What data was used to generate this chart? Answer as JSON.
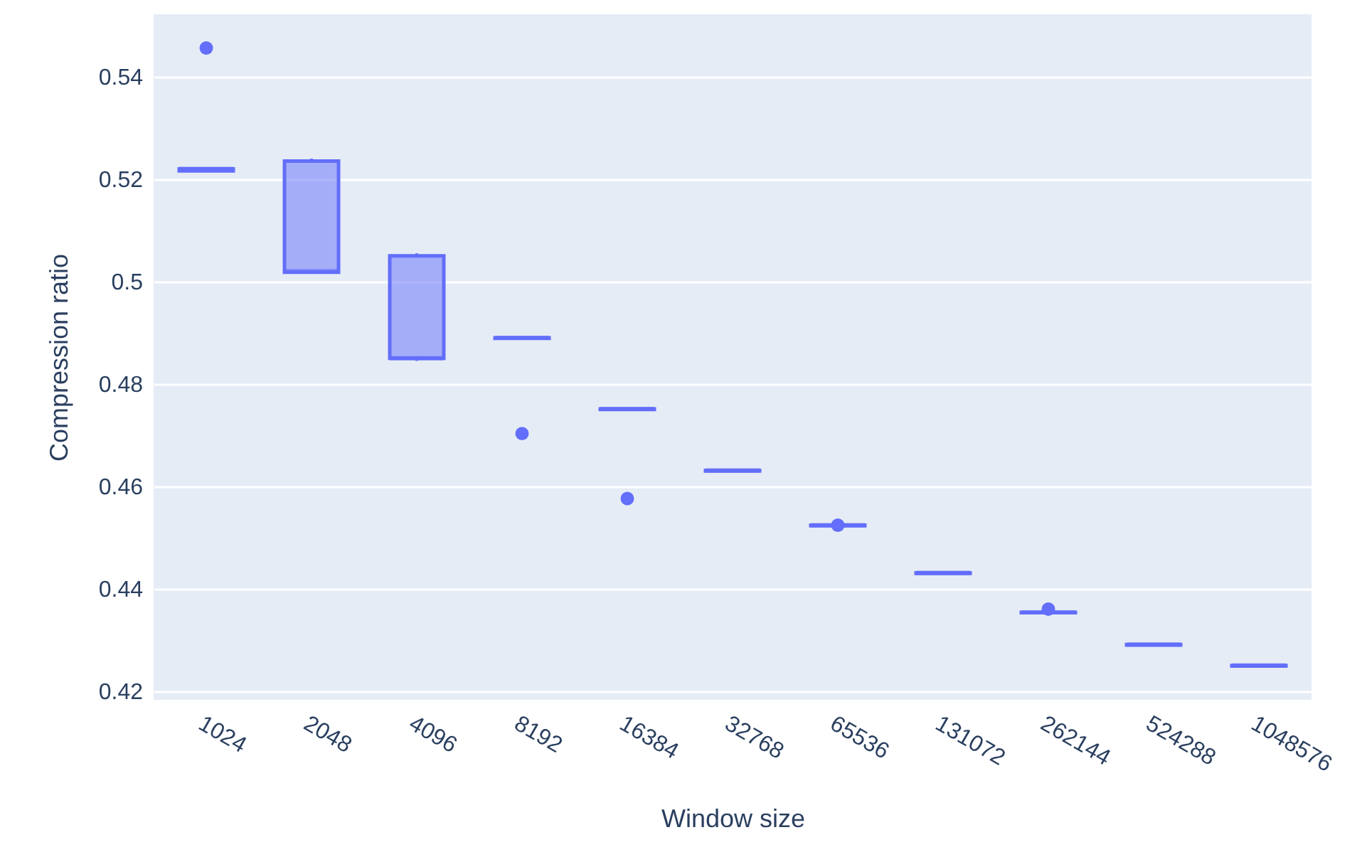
{
  "chart_data": {
    "type": "box",
    "xlabel": "Window size",
    "ylabel": "Compression ratio",
    "categories": [
      "1024",
      "2048",
      "4096",
      "8192",
      "16384",
      "32768",
      "65536",
      "131072",
      "262144",
      "524288",
      "1048576"
    ],
    "series": [
      {
        "color": "#636efa",
        "boxes": [
          {
            "low": 0.5215,
            "q1": 0.5216,
            "median": 0.522,
            "q3": 0.522,
            "high": 0.5222,
            "outliers": [
              0.5456
            ]
          },
          {
            "low": 0.5015,
            "q1": 0.5018,
            "median": 0.502,
            "q3": 0.5235,
            "high": 0.524
          },
          {
            "low": 0.4845,
            "q1": 0.485,
            "median": 0.485,
            "q3": 0.505,
            "high": 0.5055
          },
          {
            "low": 0.4888,
            "q1": 0.4889,
            "median": 0.489,
            "q3": 0.489,
            "high": 0.4892,
            "outliers": [
              0.4703
            ]
          },
          {
            "low": 0.4749,
            "q1": 0.475,
            "median": 0.4751,
            "q3": 0.4751,
            "high": 0.4752,
            "outliers": [
              0.4576
            ]
          },
          {
            "low": 0.4629,
            "q1": 0.463,
            "median": 0.4631,
            "q3": 0.4631,
            "high": 0.4632
          },
          {
            "low": 0.4522,
            "q1": 0.4523,
            "median": 0.4524,
            "q3": 0.4524,
            "high": 0.4525,
            "outliers": [
              0.4524
            ]
          },
          {
            "low": 0.4429,
            "q1": 0.443,
            "median": 0.4431,
            "q3": 0.4431,
            "high": 0.4432
          },
          {
            "low": 0.4352,
            "q1": 0.4353,
            "median": 0.4354,
            "q3": 0.4354,
            "high": 0.4355,
            "outliers": [
              0.436
            ]
          },
          {
            "low": 0.4289,
            "q1": 0.429,
            "median": 0.4291,
            "q3": 0.4291,
            "high": 0.4292
          },
          {
            "low": 0.4248,
            "q1": 0.4249,
            "median": 0.425,
            "q3": 0.425,
            "high": 0.4251
          }
        ]
      }
    ],
    "ylim": [
      0.4183,
      0.5522
    ],
    "yticks": [
      0.42,
      0.44,
      0.46,
      0.48,
      0.5,
      0.52,
      0.54
    ],
    "grid": "y"
  }
}
